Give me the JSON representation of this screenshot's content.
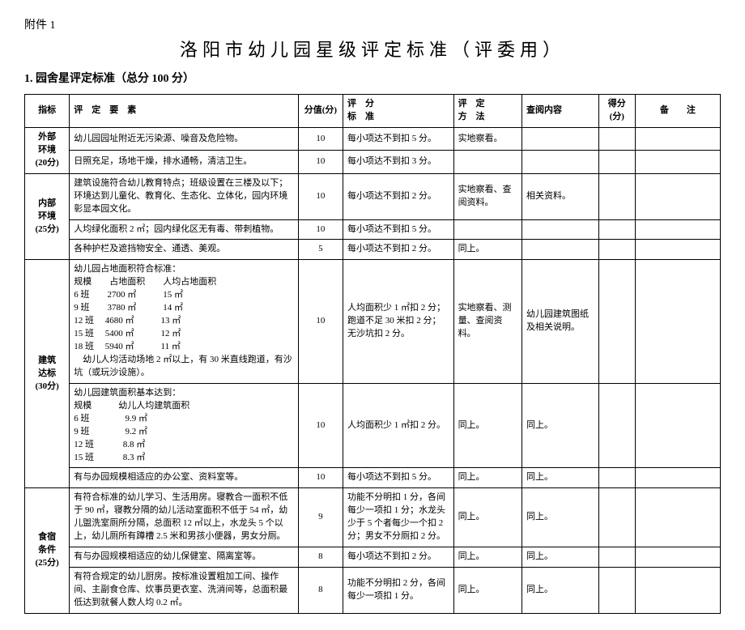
{
  "attachment": "附件 1",
  "title": "洛阳市幼儿园星级评定标准（评委用）",
  "subtitle": "1. 园舍星评定标准（总分 100 分）",
  "headers": {
    "indicator": "指标",
    "element": "评　定　要　素",
    "score": "分值(分)",
    "standard": "评　分\n标　准",
    "method": "评　定\n方　法",
    "review": "查阅内容",
    "got": "得分\n(分)",
    "note": "备　　注"
  },
  "groups": [
    {
      "indicator": "外部\n环境\n(20分)",
      "rows": [
        {
          "element": "幼儿园园址附近无污染源、噪音及危险物。",
          "score": "10",
          "standard": "每小项达不到扣 5 分。",
          "method": "实地察看。",
          "review": "",
          "got": "",
          "note": ""
        },
        {
          "element": "日照充足，场地干燥，排水通畅，清洁卫生。",
          "score": "10",
          "standard": "每小项达不到扣 3 分。",
          "method": "",
          "review": "",
          "got": "",
          "note": ""
        }
      ]
    },
    {
      "indicator": "内部\n环境\n(25分)",
      "rows": [
        {
          "element": "建筑设施符合幼儿教育特点；班级设置在三楼及以下；环境达到儿童化、教育化、生态化、立体化，园内环境彰显本园文化。",
          "score": "10",
          "standard": "每小项达不到扣 2 分。",
          "method": "实地察看、查阅资料。",
          "review": "相关资料。",
          "got": "",
          "note": ""
        },
        {
          "element": "人均绿化面积 2 ㎡；园内绿化区无有毒、带刺植物。",
          "score": "10",
          "standard": "每小项达不到扣 5 分。",
          "method": "",
          "review": "",
          "got": "",
          "note": ""
        },
        {
          "element": "各种护栏及遮挡物安全、通透、美观。",
          "score": "5",
          "standard": "每小项达不到扣 2 分。",
          "method": "同上。",
          "review": "",
          "got": "",
          "note": ""
        }
      ]
    },
    {
      "indicator": "建筑\n达标\n(30分)",
      "rows": [
        {
          "element": "幼儿园占地面积符合标准：\n规模　　占地面积　　人均占地面积\n6 班　　2700 ㎡　　　15 ㎡\n9 班　　3780 ㎡　　　14 ㎡\n12 班　 4680 ㎡　　　13 ㎡\n15 班　 5400 ㎡　　　12 ㎡\n18 班　 5940 ㎡　　　11 ㎡\n　幼儿人均活动场地 2 ㎡以上，有 30 米直线跑道，有沙坑（或玩沙设施）。",
          "score": "10",
          "standard": "人均面积少 1 ㎡扣 2 分；跑道不足 30 米扣 2 分；无沙坑扣 2 分。",
          "method": "实地察看、测量、查阅资料。",
          "review": "幼儿园建筑图纸及相关说明。",
          "got": "",
          "note": ""
        },
        {
          "element": "幼儿园建筑面积基本达到：\n规模　　　幼儿人均建筑面积\n6 班　　　　9.9 ㎡\n9 班　　　　9.2 ㎡\n12 班　　　 8.8 ㎡\n15 班　　　 8.3 ㎡",
          "score": "10",
          "standard": "人均面积少 1 ㎡扣 2 分。",
          "method": "同上。",
          "review": "同上。",
          "got": "",
          "note": ""
        },
        {
          "element": "有与办园规模相适应的办公室、资料室等。",
          "score": "10",
          "standard": "每小项达不到扣 5 分。",
          "method": "同上。",
          "review": "同上。",
          "got": "",
          "note": ""
        }
      ]
    },
    {
      "indicator": "食宿\n条件\n(25分)",
      "rows": [
        {
          "element": "有符合标准的幼儿学习、生活用房。寝教合一面积不低于 90 ㎡，寝教分隔的幼儿活动室面积不低于 54 ㎡，幼儿盥洗室厕所分隔，总面积 12 ㎡以上，水龙头 5 个以上，幼儿厕所有蹲槽 2.5 米和男孩小便器，男女分厕。",
          "score": "9",
          "standard": "功能不分明扣 1 分，各间每少一项扣 1 分；水龙头少于 5 个者每少一个扣 2 分；男女不分厕扣 2 分。",
          "method": "同上。",
          "review": "同上。",
          "got": "",
          "note": ""
        },
        {
          "element": "有与办园规模相适应的幼儿保健室、隔离室等。",
          "score": "8",
          "standard": "每小项达不到扣 2 分。",
          "method": "同上。",
          "review": "同上。",
          "got": "",
          "note": ""
        },
        {
          "element": "有符合规定的幼儿厨房。按标准设置粗加工间、操作间、主副食仓库、炊事员更衣室、洗消间等，总面积最低达到就餐人数人均 0.2 ㎡。",
          "score": "8",
          "standard": "功能不分明扣 2 分，各间每少一项扣 1 分。",
          "method": "同上。",
          "review": "同上。",
          "got": "",
          "note": ""
        }
      ]
    }
  ]
}
